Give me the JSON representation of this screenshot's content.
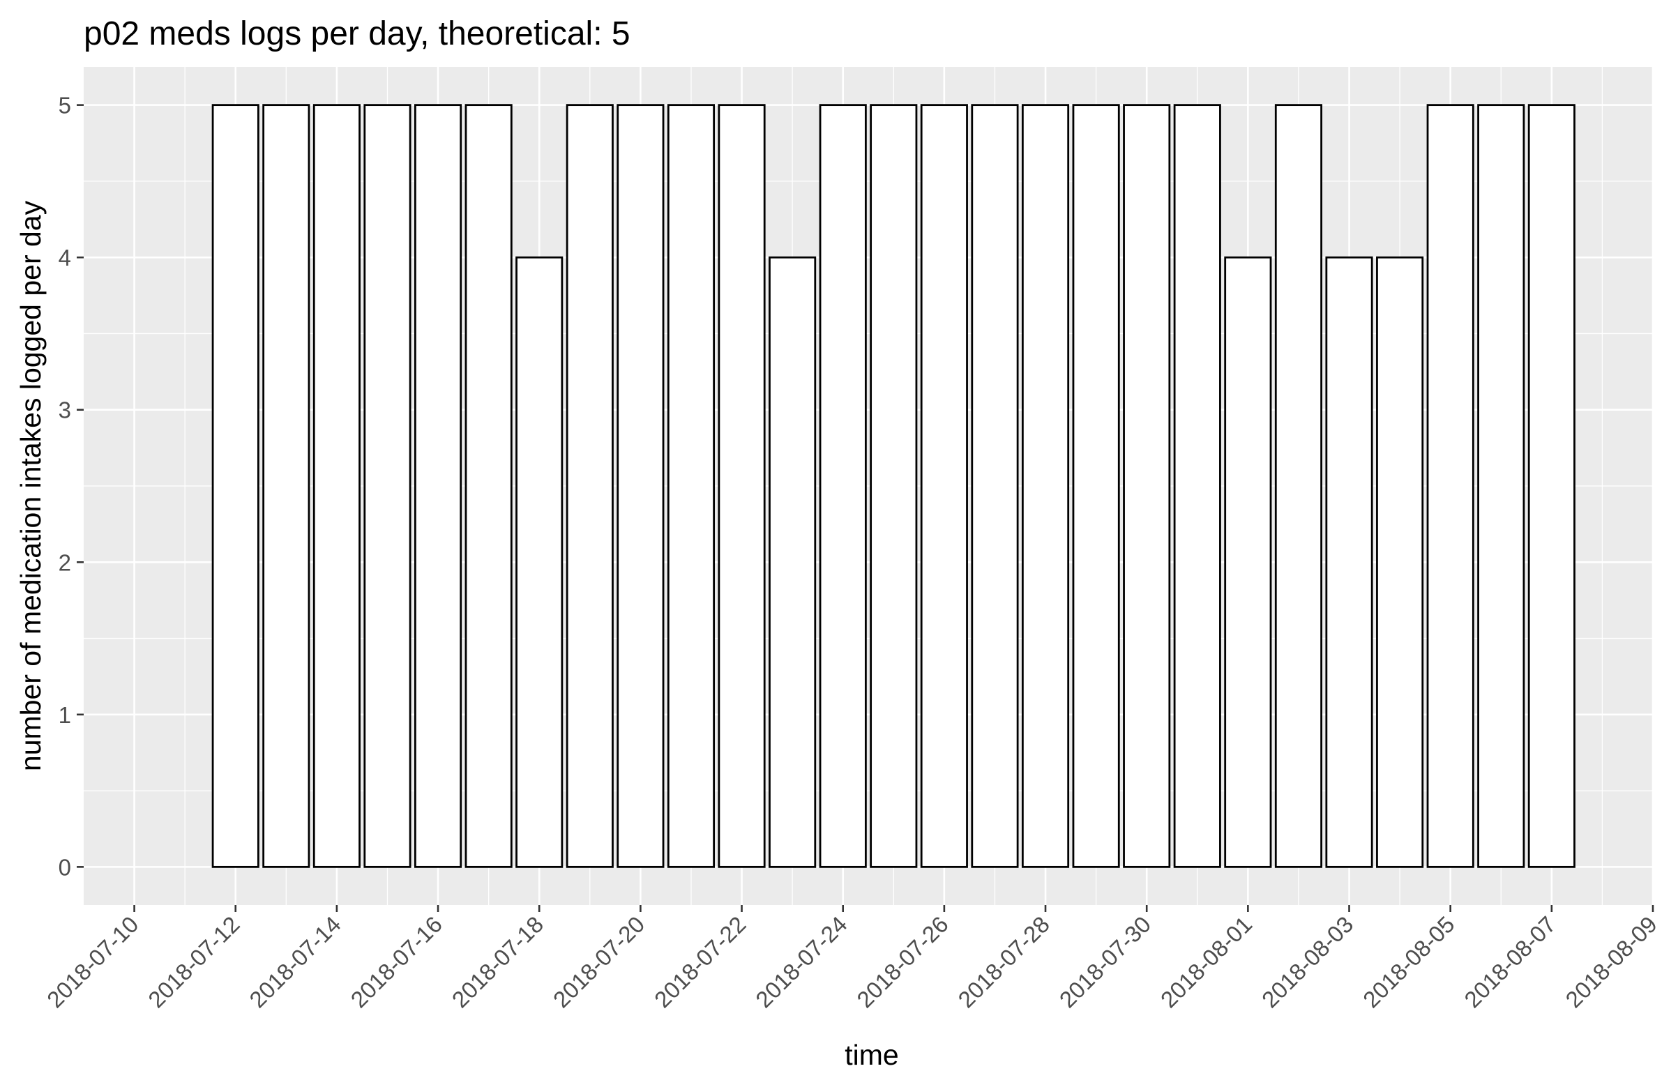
{
  "chart_data": {
    "type": "bar",
    "title": "p02 meds logs per day, theoretical: 5",
    "xlabel": "time",
    "ylabel": "number of medication intakes logged per day",
    "x": [
      "2018-07-12",
      "2018-07-13",
      "2018-07-14",
      "2018-07-15",
      "2018-07-16",
      "2018-07-17",
      "2018-07-18",
      "2018-07-19",
      "2018-07-20",
      "2018-07-21",
      "2018-07-22",
      "2018-07-23",
      "2018-07-24",
      "2018-07-25",
      "2018-07-26",
      "2018-07-27",
      "2018-07-28",
      "2018-07-29",
      "2018-07-30",
      "2018-07-31",
      "2018-08-01",
      "2018-08-02",
      "2018-08-03",
      "2018-08-04",
      "2018-08-05",
      "2018-08-06",
      "2018-08-07"
    ],
    "values": [
      5,
      5,
      5,
      5,
      5,
      5,
      4,
      5,
      5,
      5,
      5,
      4,
      5,
      5,
      5,
      5,
      5,
      5,
      5,
      5,
      4,
      5,
      4,
      4,
      5,
      5,
      5
    ],
    "x_ticks": [
      "2018-07-10",
      "2018-07-12",
      "2018-07-14",
      "2018-07-16",
      "2018-07-18",
      "2018-07-20",
      "2018-07-22",
      "2018-07-24",
      "2018-07-26",
      "2018-07-28",
      "2018-07-30",
      "2018-08-01",
      "2018-08-03",
      "2018-08-05",
      "2018-08-07",
      "2018-08-09"
    ],
    "y_ticks": [
      0,
      1,
      2,
      3,
      4,
      5
    ],
    "xlim": [
      "2018-07-09",
      "2018-08-09"
    ],
    "ylim": [
      -0.25,
      5.25
    ],
    "grid": true,
    "colors": {
      "panel": "#ebebeb",
      "grid": "#ffffff",
      "bar_fill": "#ffffff",
      "bar_stroke": "#000000"
    }
  }
}
